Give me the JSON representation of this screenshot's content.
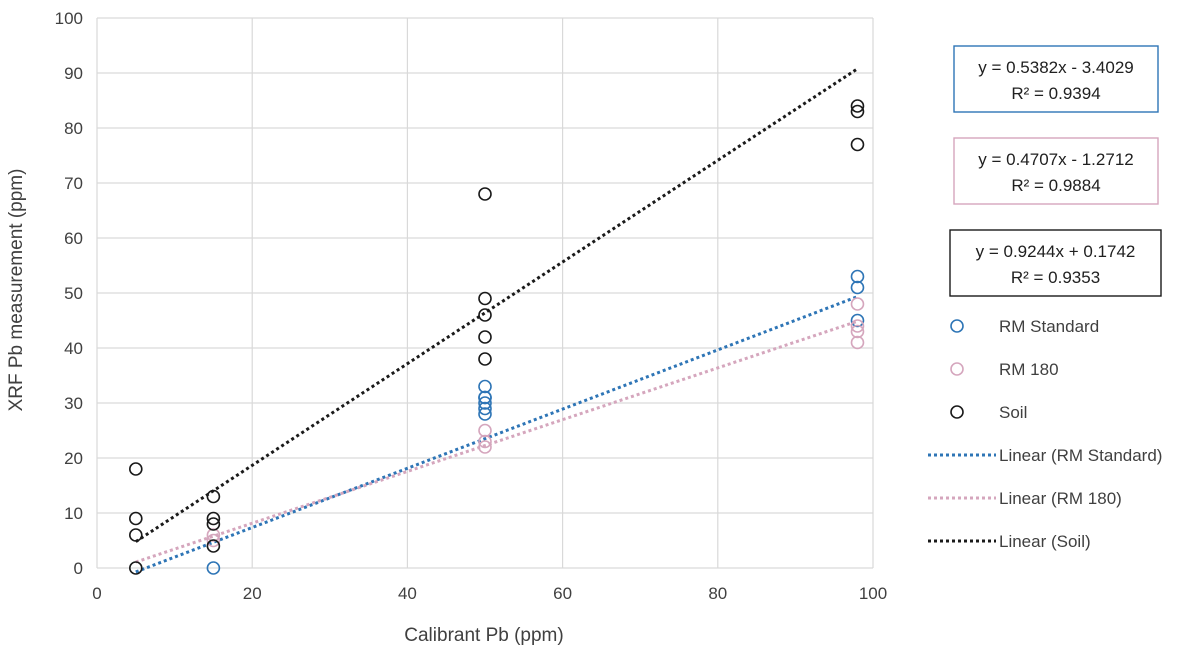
{
  "chart_data": {
    "type": "scatter",
    "xlabel": "Calibrant Pb (ppm)",
    "ylabel": "XRF Pb measurement (ppm)",
    "xlim": [
      0,
      100
    ],
    "ylim": [
      0,
      100
    ],
    "xticks": [
      0,
      20,
      40,
      60,
      80,
      100
    ],
    "yticks": [
      0,
      10,
      20,
      30,
      40,
      50,
      60,
      70,
      80,
      90,
      100
    ],
    "grid": true,
    "legend_position": "right",
    "series": [
      {
        "name": "RM Standard",
        "color": "#2e75b6",
        "x": [
          15,
          50,
          50,
          50,
          50,
          50,
          50,
          98,
          98,
          98
        ],
        "y": [
          0,
          28,
          29,
          30,
          31,
          33,
          31,
          53,
          51,
          45
        ],
        "trend_label": "Linear (RM Standard)",
        "trend": {
          "slope": 0.5382,
          "intercept": -3.4029,
          "x_range": [
            5,
            98
          ]
        },
        "equation": "y = 0.5382x - 3.4029",
        "r2": "R² = 0.9394"
      },
      {
        "name": "RM 180",
        "color": "#d5a6bd",
        "x": [
          15,
          15,
          50,
          50,
          50,
          98,
          98,
          98,
          98
        ],
        "y": [
          5,
          6,
          22,
          23,
          25,
          48,
          44,
          43,
          41
        ],
        "trend_label": "Linear (RM 180)",
        "trend": {
          "slope": 0.4707,
          "intercept": -1.2712,
          "x_range": [
            5,
            98
          ]
        },
        "equation": "y = 0.4707x - 1.2712",
        "r2": "R² = 0.9884"
      },
      {
        "name": "Soil",
        "color": "#1a1a1a",
        "x": [
          5,
          5,
          5,
          5,
          15,
          15,
          15,
          15,
          50,
          50,
          50,
          50,
          50,
          98,
          98,
          98
        ],
        "y": [
          0,
          6,
          9,
          18,
          4,
          8,
          9,
          13,
          38,
          42,
          46,
          49,
          68,
          77,
          83,
          84
        ],
        "trend_label": "Linear (Soil)",
        "trend": {
          "slope": 0.9244,
          "intercept": 0.1742,
          "x_range": [
            5,
            98
          ]
        },
        "equation": "y = 0.9244x + 0.1742",
        "r2": "R² = 0.9353"
      }
    ]
  }
}
